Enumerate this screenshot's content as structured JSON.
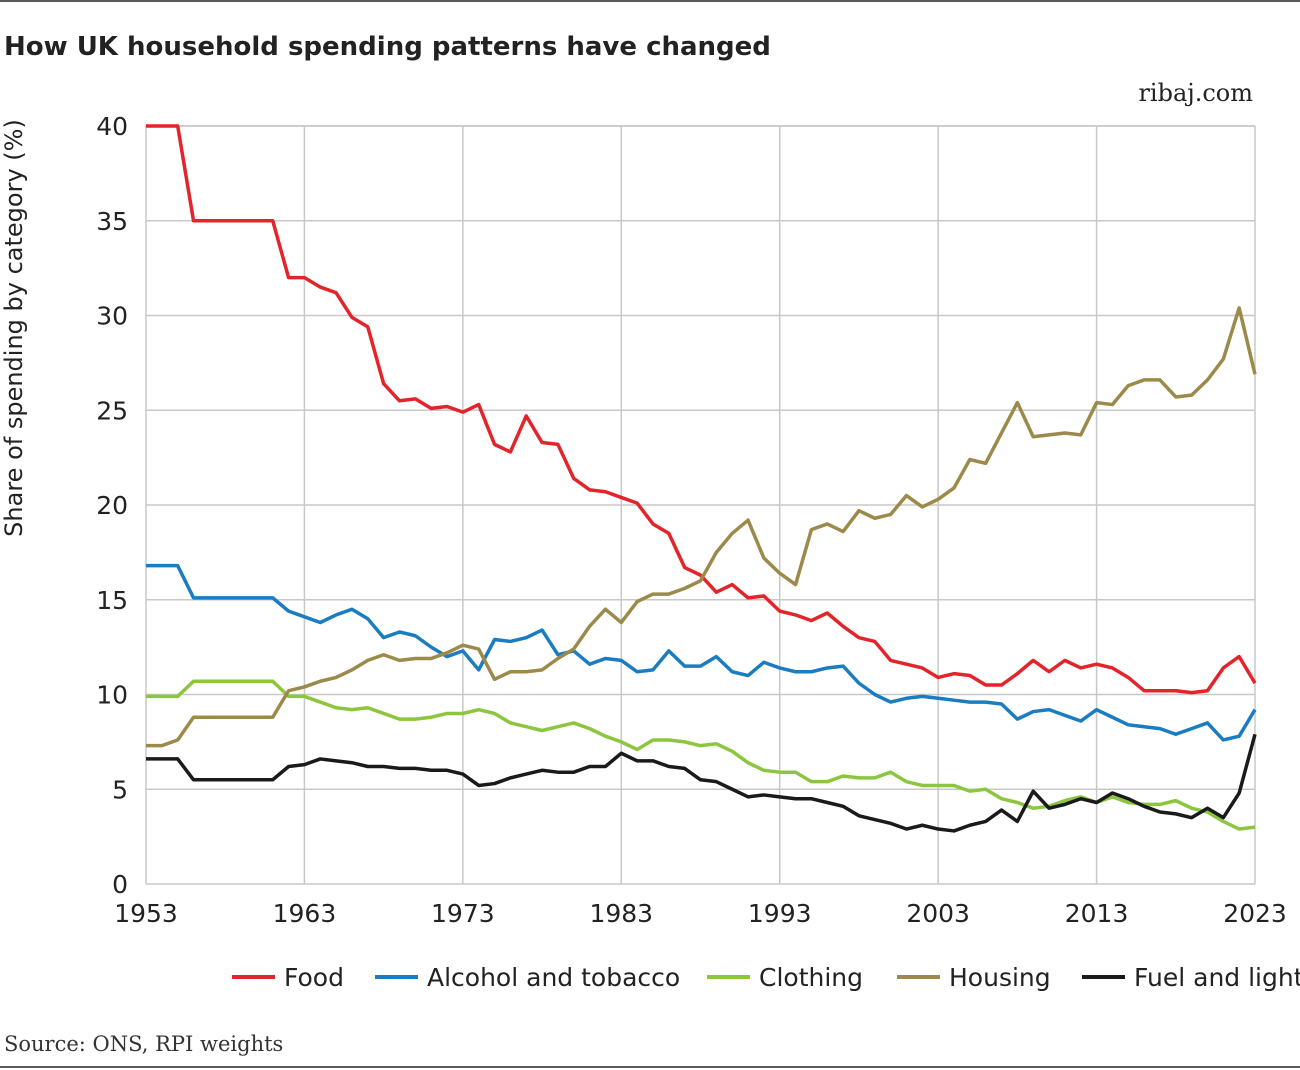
{
  "chart_data": {
    "type": "line",
    "title": "How UK household spending patterns have changed",
    "site": "ribaj.com",
    "source": "Source: ONS, RPI weights",
    "ylabel": "Share of spending by category (%)",
    "x": [
      1953,
      1954,
      1955,
      1956,
      1957,
      1958,
      1959,
      1960,
      1961,
      1962,
      1963,
      1964,
      1965,
      1966,
      1967,
      1968,
      1969,
      1970,
      1971,
      1972,
      1973,
      1974,
      1975,
      1976,
      1977,
      1978,
      1979,
      1980,
      1981,
      1982,
      1983,
      1984,
      1985,
      1986,
      1987,
      1988,
      1989,
      1990,
      1991,
      1992,
      1993,
      1994,
      1995,
      1996,
      1997,
      1998,
      1999,
      2000,
      2001,
      2002,
      2003,
      2004,
      2005,
      2006,
      2007,
      2008,
      2009,
      2010,
      2011,
      2012,
      2013,
      2014,
      2015,
      2016,
      2017,
      2018,
      2019,
      2020,
      2021,
      2022,
      2023
    ],
    "xlim": [
      1953,
      2023
    ],
    "xticks": [
      1953,
      1963,
      1973,
      1983,
      1993,
      2003,
      2013,
      2023
    ],
    "ylim": [
      0,
      40
    ],
    "yticks": [
      0,
      5,
      10,
      15,
      20,
      25,
      30,
      35,
      40
    ],
    "grid": true,
    "legend": "bottom",
    "series": [
      {
        "name": "Food",
        "color": "#e3242b",
        "values": [
          40,
          40,
          40,
          35,
          35,
          35,
          35,
          35,
          35,
          32,
          32,
          31.5,
          31.2,
          29.9,
          29.4,
          26.4,
          25.5,
          25.6,
          25.1,
          25.2,
          24.9,
          25.3,
          23.2,
          22.8,
          24.7,
          23.3,
          23.2,
          21.4,
          20.8,
          20.7,
          20.4,
          20.1,
          19.0,
          18.5,
          16.7,
          16.3,
          15.4,
          15.8,
          15.1,
          15.2,
          14.4,
          14.2,
          13.9,
          14.3,
          13.6,
          13.0,
          12.8,
          11.8,
          11.6,
          11.4,
          10.9,
          11.1,
          11.0,
          10.5,
          10.5,
          11.1,
          11.8,
          11.2,
          11.8,
          11.4,
          11.6,
          11.4,
          10.9,
          10.2,
          10.2,
          10.2,
          10.1,
          10.2,
          11.4,
          12.0,
          10.6
        ]
      },
      {
        "name": "Alcohol and tobacco",
        "color": "#1a7cc1",
        "values": [
          16.8,
          16.8,
          16.8,
          15.1,
          15.1,
          15.1,
          15.1,
          15.1,
          15.1,
          14.4,
          14.1,
          13.8,
          14.2,
          14.5,
          14.0,
          13.0,
          13.3,
          13.1,
          12.5,
          12.0,
          12.3,
          11.3,
          12.9,
          12.8,
          13.0,
          13.4,
          12.1,
          12.3,
          11.6,
          11.9,
          11.8,
          11.2,
          11.3,
          12.3,
          11.5,
          11.5,
          12.0,
          11.2,
          11.0,
          11.7,
          11.4,
          11.2,
          11.2,
          11.4,
          11.5,
          10.6,
          10.0,
          9.6,
          9.8,
          9.9,
          9.8,
          9.7,
          9.6,
          9.6,
          9.5,
          8.7,
          9.1,
          9.2,
          8.9,
          8.6,
          9.2,
          8.8,
          8.4,
          8.3,
          8.2,
          7.9,
          8.2,
          8.5,
          7.6,
          7.8,
          9.2
        ]
      },
      {
        "name": "Clothing",
        "color": "#8cc63f",
        "values": [
          9.9,
          9.9,
          9.9,
          10.7,
          10.7,
          10.7,
          10.7,
          10.7,
          10.7,
          9.9,
          9.9,
          9.6,
          9.3,
          9.2,
          9.3,
          9.0,
          8.7,
          8.7,
          8.8,
          9.0,
          9.0,
          9.2,
          9.0,
          8.5,
          8.3,
          8.1,
          8.3,
          8.5,
          8.2,
          7.8,
          7.5,
          7.1,
          7.6,
          7.6,
          7.5,
          7.3,
          7.4,
          7.0,
          6.4,
          6.0,
          5.9,
          5.9,
          5.4,
          5.4,
          5.7,
          5.6,
          5.6,
          5.9,
          5.4,
          5.2,
          5.2,
          5.2,
          4.9,
          5.0,
          4.5,
          4.3,
          4.0,
          4.1,
          4.4,
          4.6,
          4.3,
          4.6,
          4.3,
          4.2,
          4.2,
          4.4,
          4.0,
          3.8,
          3.3,
          2.9,
          3.0
        ]
      },
      {
        "name": "Housing",
        "color": "#9c8a4a",
        "values": [
          7.3,
          7.3,
          7.6,
          8.8,
          8.8,
          8.8,
          8.8,
          8.8,
          8.8,
          10.2,
          10.4,
          10.7,
          10.9,
          11.3,
          11.8,
          12.1,
          11.8,
          11.9,
          11.9,
          12.2,
          12.6,
          12.4,
          10.8,
          11.2,
          11.2,
          11.3,
          11.9,
          12.4,
          13.6,
          14.5,
          13.8,
          14.9,
          15.3,
          15.3,
          15.6,
          16.0,
          17.5,
          18.5,
          19.2,
          17.2,
          16.4,
          15.8,
          18.7,
          19.0,
          18.6,
          19.7,
          19.3,
          19.5,
          20.5,
          19.9,
          20.3,
          20.9,
          22.4,
          22.2,
          23.8,
          25.4,
          23.6,
          23.7,
          23.8,
          23.7,
          25.4,
          25.3,
          26.3,
          26.6,
          26.6,
          25.7,
          25.8,
          26.6,
          27.7,
          30.4,
          26.9
        ]
      },
      {
        "name": "Fuel and light",
        "color": "#1a1a1a",
        "values": [
          6.6,
          6.6,
          6.6,
          5.5,
          5.5,
          5.5,
          5.5,
          5.5,
          5.5,
          6.2,
          6.3,
          6.6,
          6.5,
          6.4,
          6.2,
          6.2,
          6.1,
          6.1,
          6.0,
          6.0,
          5.8,
          5.2,
          5.3,
          5.6,
          5.8,
          6.0,
          5.9,
          5.9,
          6.2,
          6.2,
          6.9,
          6.5,
          6.5,
          6.2,
          6.1,
          5.5,
          5.4,
          5.0,
          4.6,
          4.7,
          4.6,
          4.5,
          4.5,
          4.3,
          4.1,
          3.6,
          3.4,
          3.2,
          2.9,
          3.1,
          2.9,
          2.8,
          3.1,
          3.3,
          3.9,
          3.3,
          4.9,
          4.0,
          4.2,
          4.5,
          4.3,
          4.8,
          4.5,
          4.1,
          3.8,
          3.7,
          3.5,
          4.0,
          3.5,
          4.8,
          7.9
        ]
      }
    ]
  }
}
